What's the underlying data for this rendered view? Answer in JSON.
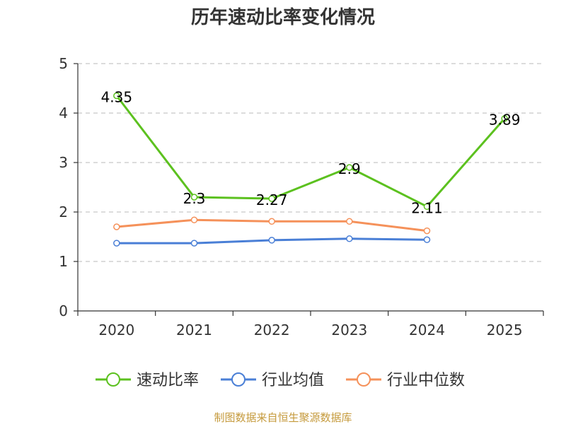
{
  "chart_data": {
    "type": "line",
    "title": "历年速动比率变化情况",
    "xlabel": "",
    "ylabel": "",
    "categories": [
      "2020",
      "2021",
      "2022",
      "2023",
      "2024",
      "2025"
    ],
    "yticks": [
      "0",
      "1",
      "2",
      "3",
      "4",
      "5"
    ],
    "ylim": [
      0,
      5
    ],
    "grid": true,
    "legend_position": "bottom",
    "series": [
      {
        "name": "速动比率",
        "color": "#5cc11f",
        "values": [
          4.35,
          2.3,
          2.27,
          2.9,
          2.11,
          3.89
        ],
        "labels": [
          "4.35",
          "2.3",
          "2.27",
          "2.9",
          "2.11",
          "3.89"
        ]
      },
      {
        "name": "行业均值",
        "color": "#4a7fd6",
        "values": [
          1.37,
          1.37,
          1.43,
          1.46,
          1.44,
          null
        ]
      },
      {
        "name": "行业中位数",
        "color": "#f5915a",
        "values": [
          1.7,
          1.84,
          1.81,
          1.81,
          1.62,
          null
        ]
      }
    ]
  },
  "footer": "制图数据来自恒生聚源数据库"
}
